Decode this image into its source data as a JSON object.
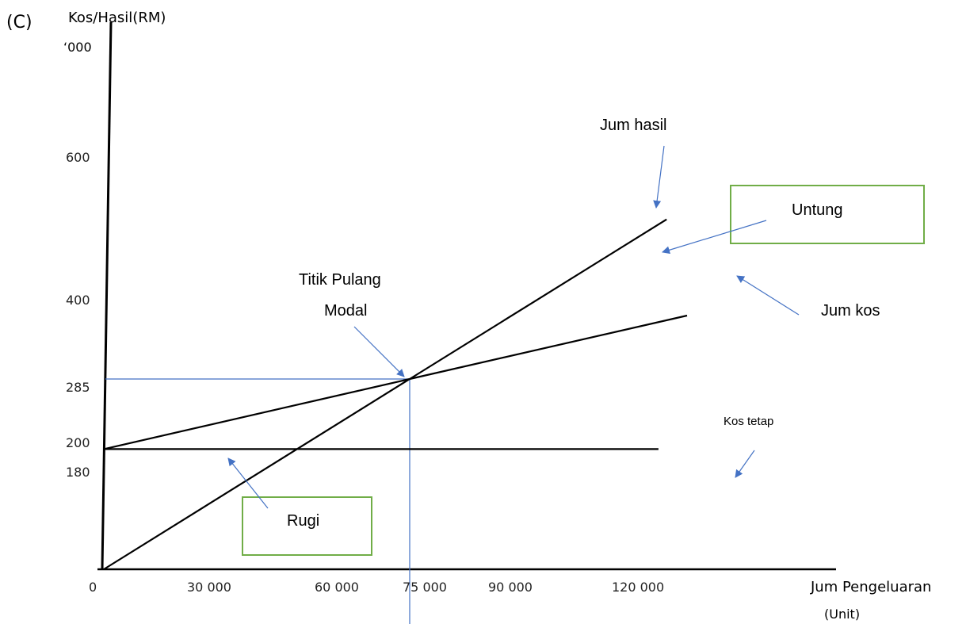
{
  "part_label": "(C)",
  "chart_data": {
    "type": "line",
    "title": "",
    "ylabel": "Kos/Hasil(RM)",
    "ylabel_unit": "‘000",
    "xlabel": "Jum Pengeluaran",
    "xlabel_unit": "(Unit)",
    "x_ticks": [
      "0",
      "30 000",
      "60 000",
      "75 000",
      "90 000",
      "120 000"
    ],
    "y_ticks": [
      "180",
      "200",
      "285",
      "400",
      "600"
    ],
    "series": [
      {
        "name": "Jum hasil",
        "points": [
          [
            0,
            0
          ],
          [
            75000,
            285
          ],
          [
            138000,
            524
          ]
        ]
      },
      {
        "name": "Jum kos",
        "points": [
          [
            0,
            180
          ],
          [
            75000,
            285
          ],
          [
            143000,
            380
          ]
        ]
      },
      {
        "name": "Kos tetap",
        "points": [
          [
            0,
            180
          ],
          [
            136000,
            180
          ]
        ]
      }
    ],
    "break_even": {
      "x": 75000,
      "y": 285
    },
    "annotations": {
      "jum_hasil": "Jum hasil",
      "jum_kos": "Jum kos",
      "kos_tetap": "Kos tetap",
      "titik_line1": "Titik Pulang",
      "titik_line2": "Modal",
      "untung": "Untung",
      "rugi": "Rugi"
    },
    "colors": {
      "axis": "#000000",
      "guide": "#4472c4",
      "box": "#70ad47",
      "arrow": "#4472c4"
    }
  }
}
